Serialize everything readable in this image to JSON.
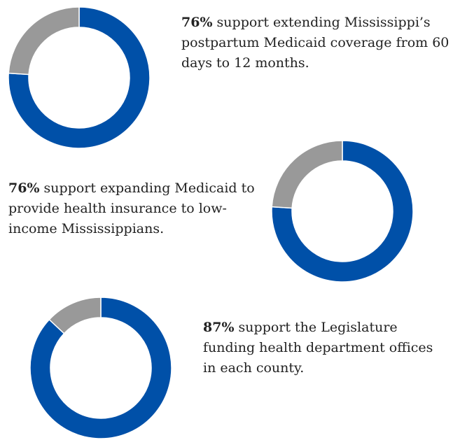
{
  "colors": {
    "support": "#0050a8",
    "other": "#999999"
  },
  "chart_data": [
    {
      "type": "pie",
      "donut": true,
      "values": [
        76,
        24
      ],
      "labels": [
        "support",
        "other"
      ],
      "percent_text": "76%",
      "caption_text": " support extending Mississippi’s postpartum Medicaid coverage from 60 days to 12 months."
    },
    {
      "type": "pie",
      "donut": true,
      "values": [
        76,
        24
      ],
      "labels": [
        "support",
        "other"
      ],
      "percent_text": "76%",
      "caption_text": " support expanding Medicaid to provide health insurance to low-income Mississippians."
    },
    {
      "type": "pie",
      "donut": true,
      "values": [
        87,
        13
      ],
      "labels": [
        "support",
        "other"
      ],
      "percent_text": "87%",
      "caption_text": " support the Legislature funding health department offices in each county."
    }
  ]
}
